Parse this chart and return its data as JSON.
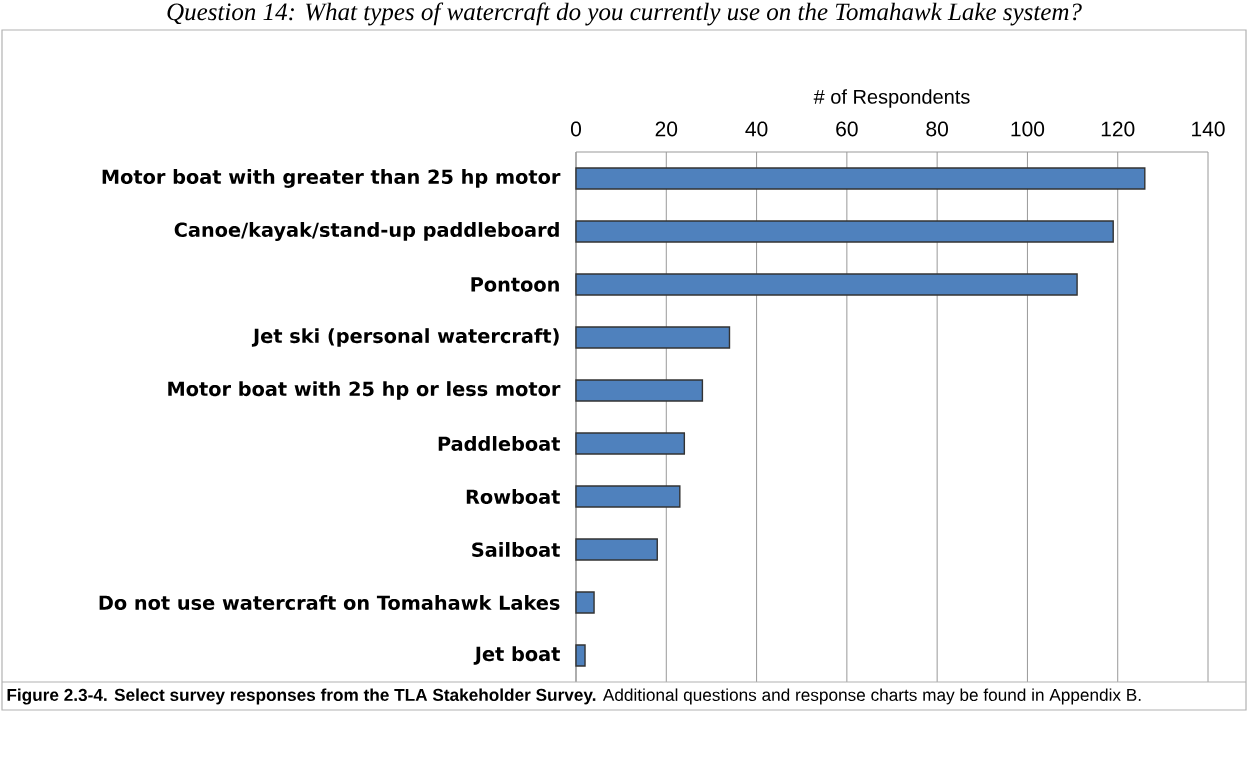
{
  "chart_data": {
    "type": "bar",
    "orientation": "horizontal",
    "title": "Question 14:  What types of watercraft do you currently use on the Tomahawk Lake system?",
    "xlabel": "# of Respondents",
    "categories": [
      "Motor boat with greater than 25 hp motor",
      "Canoe/kayak/stand-up paddleboard",
      "Pontoon",
      "Jet ski (personal watercraft)",
      "Motor boat with 25 hp or less motor",
      "Paddleboat",
      "Rowboat",
      "Sailboat",
      "Do not use watercraft on Tomahawk Lakes",
      "Jet boat"
    ],
    "values": [
      126,
      119,
      111,
      34,
      28,
      24,
      23,
      18,
      4,
      2
    ],
    "color": "#4f81bd",
    "xlim": [
      0,
      140
    ],
    "xticks": [
      0,
      20,
      40,
      60,
      80,
      100,
      120,
      140
    ],
    "grid": "x",
    "annotations": [
      "**Figure 2.3-4.  Select survey responses from the TLA Stakeholder Survey.**     Additional questions and response charts may be found in Appendix B."
    ]
  }
}
